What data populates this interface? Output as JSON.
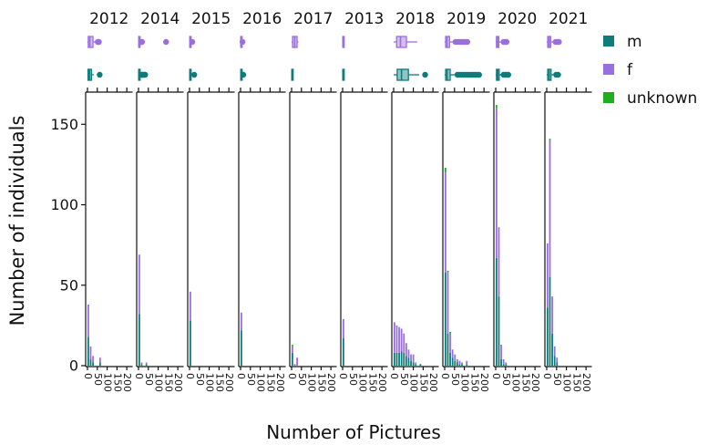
{
  "chart_data": {
    "type": "bar",
    "stacked": true,
    "xlabel": "Number of Pictures",
    "ylabel": "Number of individuals",
    "ylim": [
      0,
      170
    ],
    "yticks": [
      0,
      50,
      100,
      150
    ],
    "xlim": [
      0,
      220
    ],
    "xticks": [
      0,
      50,
      100,
      150,
      200
    ],
    "bin_width": 12,
    "legend": {
      "placement": "right",
      "entries": [
        {
          "key": "m",
          "label": "m",
          "color": "#0f7b7b"
        },
        {
          "key": "f",
          "label": "f",
          "color": "#9b6ee0"
        },
        {
          "key": "unknown",
          "label": "unknown",
          "color": "#1fae1f"
        }
      ]
    },
    "panels": [
      {
        "year": "2012",
        "bins": [
          {
            "x": 6,
            "m": 18,
            "f": 20,
            "unknown": 0
          },
          {
            "x": 18,
            "m": 4,
            "f": 8,
            "unknown": 0
          },
          {
            "x": 30,
            "m": 2,
            "f": 4,
            "unknown": 0
          },
          {
            "x": 66,
            "m": 2,
            "f": 3,
            "unknown": 0
          }
        ],
        "box_f": {
          "q1": 4,
          "median": 12,
          "q3": 28,
          "whisker_low": 0,
          "whisker_high": 42,
          "outliers": [
            52,
            56,
            58
          ]
        },
        "box_m": {
          "q1": 3,
          "median": 10,
          "q3": 20,
          "whisker_low": 0,
          "whisker_high": 32,
          "outliers": [
            62
          ]
        }
      },
      {
        "year": "2014",
        "bins": [
          {
            "x": 6,
            "m": 32,
            "f": 37,
            "unknown": 0
          },
          {
            "x": 18,
            "m": 1,
            "f": 1,
            "unknown": 0
          },
          {
            "x": 42,
            "m": 1,
            "f": 1,
            "unknown": 0
          }
        ],
        "box_f": {
          "q1": 1,
          "median": 3,
          "q3": 6,
          "whisker_low": 0,
          "whisker_high": 10,
          "outliers": [
            15,
            18,
            140
          ]
        },
        "box_m": {
          "q1": 1,
          "median": 2,
          "q3": 5,
          "whisker_low": 0,
          "whisker_high": 9,
          "outliers": [
            14,
            18,
            22,
            26,
            30,
            34
          ]
        }
      },
      {
        "year": "2015",
        "bins": [
          {
            "x": 6,
            "m": 28,
            "f": 18,
            "unknown": 0
          }
        ],
        "box_f": {
          "q1": 1,
          "median": 3,
          "q3": 6,
          "whisker_low": 0,
          "whisker_high": 9,
          "outliers": [
            14
          ]
        },
        "box_m": {
          "q1": 1,
          "median": 3,
          "q3": 7,
          "whisker_low": 0,
          "whisker_high": 10,
          "outliers": [
            24
          ]
        }
      },
      {
        "year": "2016",
        "bins": [
          {
            "x": 6,
            "m": 22,
            "f": 11,
            "unknown": 0
          }
        ],
        "box_f": {
          "q1": 1,
          "median": 2,
          "q3": 4,
          "whisker_low": 0,
          "whisker_high": 6,
          "outliers": [
            10
          ]
        },
        "box_m": {
          "q1": 1,
          "median": 3,
          "q3": 6,
          "whisker_low": 0,
          "whisker_high": 8,
          "outliers": [
            14
          ]
        }
      },
      {
        "year": "2017",
        "bins": [
          {
            "x": 6,
            "m": 8,
            "f": 4,
            "unknown": 1
          },
          {
            "x": 18,
            "m": 0,
            "f": 1,
            "unknown": 0
          },
          {
            "x": 30,
            "m": 0,
            "f": 5,
            "unknown": 0
          }
        ],
        "box_f": {
          "q1": 5,
          "median": 16,
          "q3": 28,
          "whisker_low": 0,
          "whisker_high": 35,
          "outliers": []
        },
        "box_m": {
          "q1": 1,
          "median": 3,
          "q3": 5,
          "whisker_low": 0,
          "whisker_high": 8,
          "outliers": []
        }
      },
      {
        "year": "2013",
        "bins": [
          {
            "x": 6,
            "m": 17,
            "f": 12,
            "unknown": 0
          }
        ],
        "box_f": {
          "q1": 1,
          "median": 2,
          "q3": 3,
          "whisker_low": 0,
          "whisker_high": 4,
          "outliers": []
        },
        "box_m": {
          "q1": 1,
          "median": 2,
          "q3": 3,
          "whisker_low": 0,
          "whisker_high": 4,
          "outliers": []
        }
      },
      {
        "year": "2018",
        "bins": [
          {
            "x": 6,
            "m": 8,
            "f": 19,
            "unknown": 0
          },
          {
            "x": 18,
            "m": 8,
            "f": 17,
            "unknown": 0
          },
          {
            "x": 30,
            "m": 8,
            "f": 16,
            "unknown": 0
          },
          {
            "x": 42,
            "m": 9,
            "f": 14,
            "unknown": 0
          },
          {
            "x": 54,
            "m": 8,
            "f": 12,
            "unknown": 0
          },
          {
            "x": 66,
            "m": 6,
            "f": 8,
            "unknown": 0
          },
          {
            "x": 78,
            "m": 5,
            "f": 5,
            "unknown": 0
          },
          {
            "x": 90,
            "m": 3,
            "f": 4,
            "unknown": 0
          },
          {
            "x": 102,
            "m": 2,
            "f": 5,
            "unknown": 0
          },
          {
            "x": 114,
            "m": 1,
            "f": 1,
            "unknown": 0
          },
          {
            "x": 138,
            "m": 1,
            "f": 0,
            "unknown": 0
          }
        ],
        "box_f": {
          "q1": 15,
          "median": 35,
          "q3": 65,
          "whisker_low": 0,
          "whisker_high": 120,
          "outliers": []
        },
        "box_m": {
          "q1": 18,
          "median": 40,
          "q3": 75,
          "whisker_low": 0,
          "whisker_high": 130,
          "outliers": [
            160
          ]
        }
      },
      {
        "year": "2019",
        "bins": [
          {
            "x": 6,
            "m": 58,
            "f": 62,
            "unknown": 3
          },
          {
            "x": 18,
            "m": 20,
            "f": 38,
            "unknown": 1
          },
          {
            "x": 30,
            "m": 8,
            "f": 12,
            "unknown": 1
          },
          {
            "x": 42,
            "m": 5,
            "f": 5,
            "unknown": 0
          },
          {
            "x": 54,
            "m": 3,
            "f": 4,
            "unknown": 0
          },
          {
            "x": 66,
            "m": 2,
            "f": 2,
            "unknown": 0
          },
          {
            "x": 78,
            "m": 1,
            "f": 2,
            "unknown": 0
          },
          {
            "x": 90,
            "m": 1,
            "f": 1,
            "unknown": 0
          },
          {
            "x": 114,
            "m": 1,
            "f": 2,
            "unknown": 0
          }
        ],
        "box_f": {
          "q1": 5,
          "median": 12,
          "q3": 25,
          "whisker_low": 0,
          "whisker_high": 45,
          "outliers": [
            55,
            65,
            75,
            85,
            95,
            105,
            115
          ]
        },
        "box_m": {
          "q1": 5,
          "median": 12,
          "q3": 28,
          "whisker_low": 0,
          "whisker_high": 55,
          "outliers": [
            65,
            75,
            85,
            95,
            105,
            115,
            125,
            135,
            145,
            155,
            165,
            175
          ]
        }
      },
      {
        "year": "2020",
        "bins": [
          {
            "x": 6,
            "m": 67,
            "f": 93,
            "unknown": 2
          },
          {
            "x": 18,
            "m": 43,
            "f": 43,
            "unknown": 0
          },
          {
            "x": 30,
            "m": 4,
            "f": 9,
            "unknown": 0
          },
          {
            "x": 42,
            "m": 1,
            "f": 3,
            "unknown": 0
          },
          {
            "x": 54,
            "m": 1,
            "f": 1,
            "unknown": 0
          }
        ],
        "box_f": {
          "q1": 4,
          "median": 9,
          "q3": 16,
          "whisker_low": 0,
          "whisker_high": 28,
          "outliers": [
            40,
            48,
            55
          ]
        },
        "box_m": {
          "q1": 4,
          "median": 10,
          "q3": 18,
          "whisker_low": 0,
          "whisker_high": 30,
          "outliers": [
            40,
            48,
            56,
            64
          ]
        }
      },
      {
        "year": "2021",
        "bins": [
          {
            "x": 6,
            "m": 36,
            "f": 40,
            "unknown": 0
          },
          {
            "x": 18,
            "m": 55,
            "f": 85,
            "unknown": 1
          },
          {
            "x": 30,
            "m": 20,
            "f": 23,
            "unknown": 0
          },
          {
            "x": 42,
            "m": 6,
            "f": 6,
            "unknown": 0
          },
          {
            "x": 54,
            "m": 2,
            "f": 3,
            "unknown": 0
          }
        ],
        "box_f": {
          "q1": 5,
          "median": 12,
          "q3": 20,
          "whisker_low": 0,
          "whisker_high": 35,
          "outliers": [
            45,
            55,
            62
          ]
        },
        "box_m": {
          "q1": 5,
          "median": 12,
          "q3": 22,
          "whisker_low": 0,
          "whisker_high": 38,
          "outliers": [
            48,
            58
          ]
        }
      }
    ]
  }
}
